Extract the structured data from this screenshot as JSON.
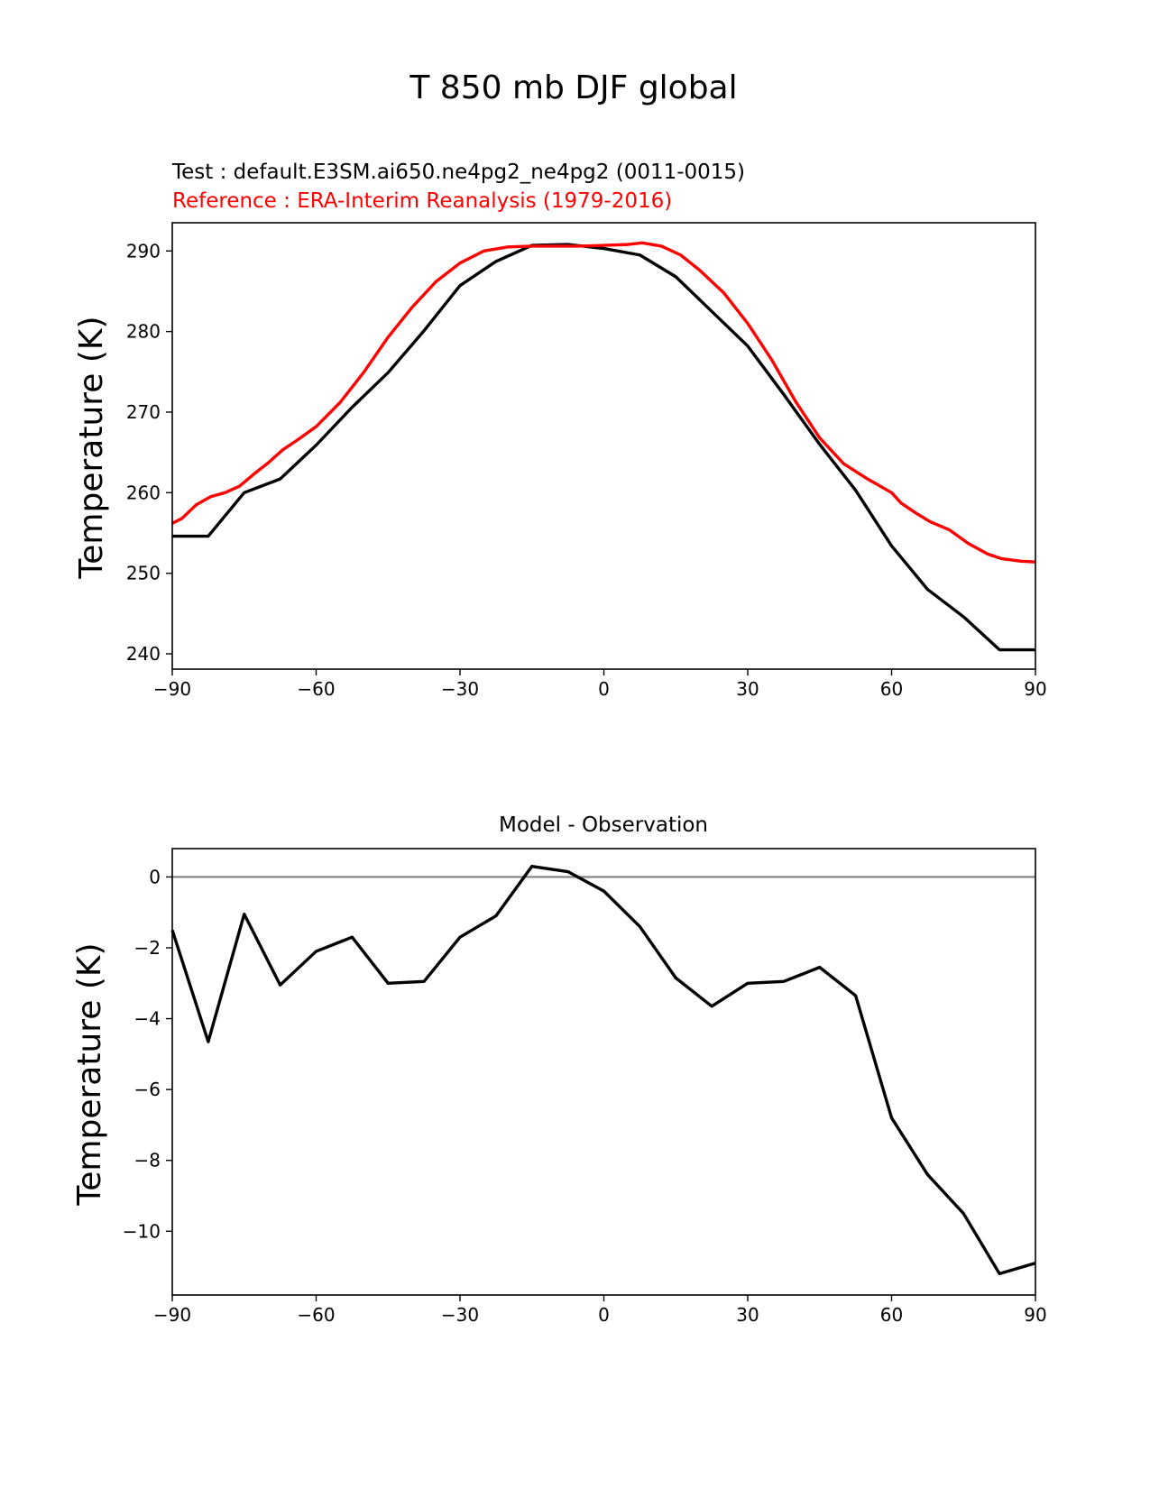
{
  "figure": {
    "title": "T 850 mb DJF global"
  },
  "chart_data": [
    {
      "type": "line",
      "test_label": "Test : default.E3SM.ai650.ne4pg2_ne4pg2 (0011-0015)",
      "ref_label": "Reference : ERA-Interim Reanalysis (1979-2016)",
      "ylabel": "Temperature (K)",
      "xlabel": "",
      "xlim": [
        -90,
        90
      ],
      "ylim": [
        238.1,
        293.5
      ],
      "xticks": [
        -90,
        -60,
        -30,
        0,
        30,
        60,
        90
      ],
      "yticks": [
        240,
        250,
        260,
        270,
        280,
        290
      ],
      "colors": {
        "test": "#000000",
        "reference": "#ff0000"
      },
      "series": [
        {
          "name": "Test",
          "x": [
            -90,
            -82.5,
            -75,
            -67.5,
            -60,
            -52.5,
            -45,
            -37.5,
            -30,
            -22.5,
            -15,
            -7.5,
            0,
            7.5,
            15,
            22.5,
            30,
            37.5,
            45,
            52.5,
            60,
            67.5,
            75,
            82.5,
            90
          ],
          "y": [
            254.6,
            254.6,
            260.0,
            261.7,
            265.9,
            270.6,
            274.9,
            280.1,
            285.7,
            288.7,
            290.7,
            290.8,
            290.3,
            289.5,
            286.8,
            282.5,
            278.2,
            272.2,
            266.0,
            260.3,
            253.4,
            248.0,
            244.6,
            240.5,
            240.5
          ]
        },
        {
          "name": "Reference",
          "x": [
            -90,
            -88,
            -85,
            -82,
            -79,
            -76,
            -73,
            -70,
            -67,
            -64,
            -60,
            -55,
            -50,
            -45,
            -40,
            -35,
            -30,
            -25,
            -20,
            -15,
            -10,
            -5,
            0,
            5,
            8,
            12,
            16,
            20,
            25,
            30,
            35,
            40,
            45,
            50,
            55,
            60,
            62,
            65,
            68,
            72,
            76,
            80,
            83,
            87,
            90
          ],
          "y": [
            256.2,
            256.8,
            258.5,
            259.5,
            260.0,
            260.8,
            262.3,
            263.7,
            265.3,
            266.5,
            268.2,
            271.2,
            275.0,
            279.3,
            283.0,
            286.2,
            288.5,
            290.0,
            290.5,
            290.6,
            290.6,
            290.6,
            290.7,
            290.8,
            291.0,
            290.6,
            289.5,
            287.6,
            284.8,
            281.0,
            276.5,
            271.3,
            266.8,
            263.6,
            261.7,
            260.0,
            258.7,
            257.5,
            256.4,
            255.4,
            253.7,
            252.4,
            251.8,
            251.5,
            251.4
          ]
        }
      ]
    },
    {
      "type": "line",
      "title": "Model - Observation",
      "ylabel": "Temperature (K)",
      "xlabel": "",
      "xlim": [
        -90,
        90
      ],
      "ylim": [
        -11.8,
        0.8
      ],
      "xticks": [
        -90,
        -60,
        -30,
        0,
        30,
        60,
        90
      ],
      "yticks": [
        0,
        -2,
        -4,
        -6,
        -8,
        -10
      ],
      "ytick_labels": [
        "0",
        "−2",
        "−4",
        "−6",
        "−8",
        "−10"
      ],
      "zero_line": {
        "value": 0,
        "color": "#808080"
      },
      "series": [
        {
          "name": "Model - Observation",
          "color": "#000000",
          "x": [
            -90,
            -82.5,
            -75,
            -67.5,
            -60,
            -52.5,
            -45,
            -37.5,
            -30,
            -22.5,
            -15,
            -7.5,
            0,
            7.5,
            15,
            22.5,
            30,
            37.5,
            45,
            52.5,
            60,
            67.5,
            75,
            82.5,
            90
          ],
          "y": [
            -1.5,
            -4.65,
            -1.05,
            -3.05,
            -2.1,
            -1.7,
            -3.0,
            -2.95,
            -1.7,
            -1.1,
            0.3,
            0.15,
            -0.4,
            -1.4,
            -2.85,
            -3.65,
            -3.0,
            -2.95,
            -2.55,
            -3.35,
            -6.8,
            -8.4,
            -9.5,
            -11.2,
            -10.9
          ]
        }
      ]
    }
  ]
}
